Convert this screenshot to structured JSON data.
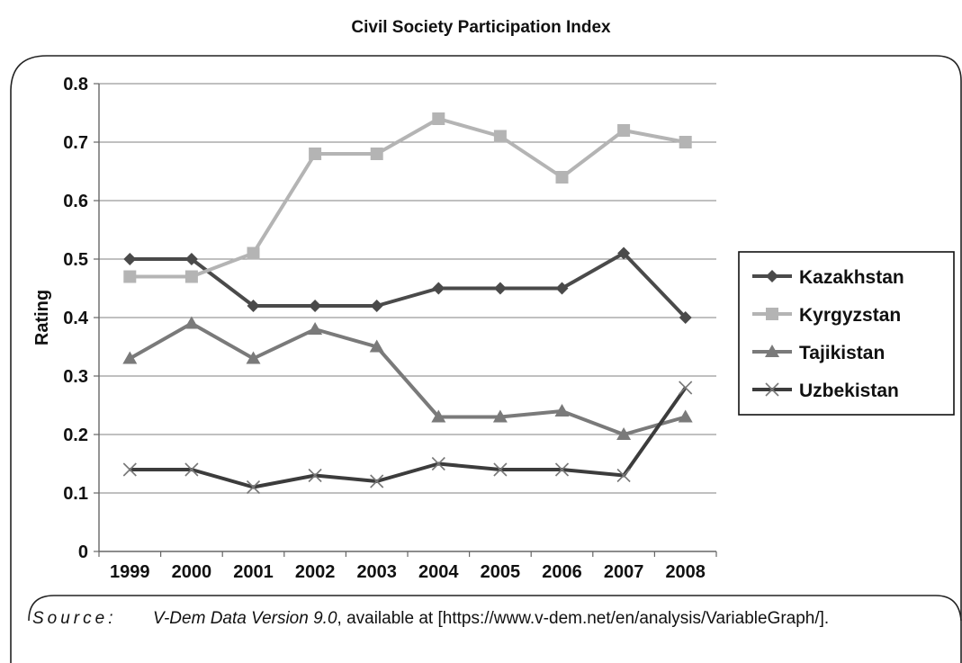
{
  "chart_data": {
    "type": "line",
    "title": "Civil Society Participation Index",
    "ylabel": "Rating",
    "xlabel": "",
    "ylim": [
      0,
      0.8
    ],
    "yticks": [
      "0",
      "0.1",
      "0.2",
      "0.3",
      "0.4",
      "0.5",
      "0.6",
      "0.7",
      "0.8"
    ],
    "ytick_values": [
      0,
      0.1,
      0.2,
      0.3,
      0.4,
      0.5,
      0.6,
      0.7,
      0.8
    ],
    "categories": [
      "1999",
      "2000",
      "2001",
      "2002",
      "2003",
      "2004",
      "2005",
      "2006",
      "2007",
      "2008"
    ],
    "grid": true,
    "legend_position": "right",
    "series": [
      {
        "name": "Kazakhstan",
        "color": "#4a4a4a",
        "marker": "diamond",
        "values": [
          0.5,
          0.5,
          0.42,
          0.42,
          0.42,
          0.45,
          0.45,
          0.45,
          0.51,
          0.4
        ]
      },
      {
        "name": "Kyrgyzstan",
        "color": "#b4b4b4",
        "marker": "square",
        "values": [
          0.47,
          0.47,
          0.51,
          0.68,
          0.68,
          0.74,
          0.71,
          0.64,
          0.72,
          0.7
        ]
      },
      {
        "name": "Tajikistan",
        "color": "#7a7a7a",
        "marker": "triangle",
        "values": [
          0.33,
          0.39,
          0.33,
          0.38,
          0.35,
          0.23,
          0.23,
          0.24,
          0.2,
          0.23
        ]
      },
      {
        "name": "Uzbekistan",
        "color": "#3c3c3c",
        "marker": "x",
        "values": [
          0.14,
          0.14,
          0.11,
          0.13,
          0.12,
          0.15,
          0.14,
          0.14,
          0.13,
          0.28
        ]
      }
    ]
  },
  "source": {
    "label": "Source:",
    "dataset": "V-Dem Data Version 9.0",
    "text": ", available at [https://www.v-dem.net/en/analysis/VariableGraph/]."
  }
}
